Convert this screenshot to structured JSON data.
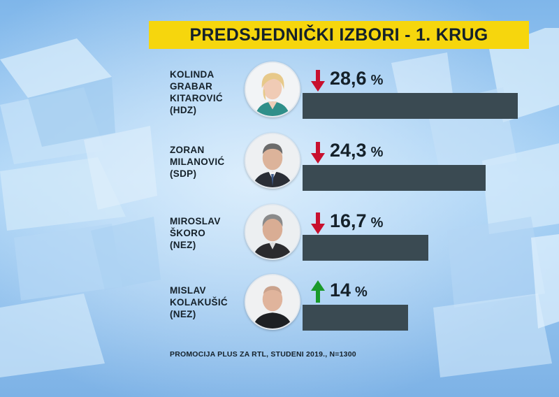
{
  "title": "PREDSJEDNIČKI IZBORI - 1. KRUG",
  "footnote": "PROMOCIJA PLUS ZA RTL, STUDENI 2019., N=1300",
  "colors": {
    "title_background": "#f6d60d",
    "bar": "#3a4a52",
    "arrow_down": "#c8102e",
    "arrow_up": "#1a9a2a"
  },
  "chart_data": {
    "type": "bar",
    "orientation": "horizontal",
    "title": "PREDSJEDNIČKI IZBORI - 1. KRUG",
    "unit": "%",
    "categories": [
      "KOLINDA GRABAR KITAROVIĆ (HDZ)",
      "ZORAN MILANOVIĆ (SDP)",
      "MIROSLAV ŠKORO (NEZ)",
      "MISLAV KOLAKUŠIĆ (NEZ)"
    ],
    "values": [
      28.6,
      24.3,
      16.7,
      14
    ],
    "xlim": [
      0,
      28.6
    ],
    "items": [
      {
        "name_lines": [
          "KOLINDA",
          "GRABAR",
          "KITAROVIĆ",
          "(HDZ)"
        ],
        "value": 28.6,
        "value_text": "28,6",
        "trend": "down",
        "trend_icon": "arrow-down-icon"
      },
      {
        "name_lines": [
          "ZORAN",
          "MILANOVIĆ",
          "(SDP)"
        ],
        "value": 24.3,
        "value_text": "24,3",
        "trend": "down",
        "trend_icon": "arrow-down-icon"
      },
      {
        "name_lines": [
          "MIROSLAV",
          "ŠKORO",
          "(NEZ)"
        ],
        "value": 16.7,
        "value_text": "16,7",
        "trend": "down",
        "trend_icon": "arrow-down-icon"
      },
      {
        "name_lines": [
          "MISLAV",
          "KOLAKUŠIĆ",
          "(NEZ)"
        ],
        "value": 14,
        "value_text": "14",
        "trend": "up",
        "trend_icon": "arrow-up-icon"
      }
    ],
    "percent_sign": "%"
  }
}
